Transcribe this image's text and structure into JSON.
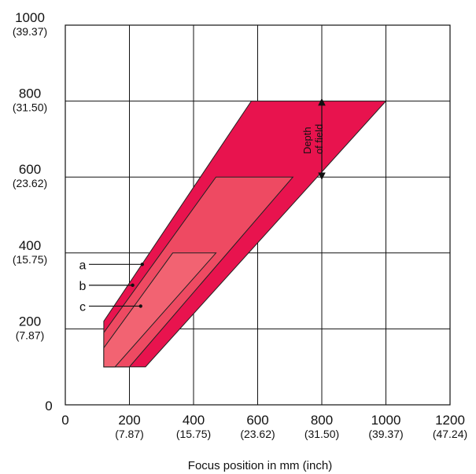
{
  "chart_data": {
    "type": "area",
    "xlabel": "Focus position in mm (inch)",
    "ylabel": "",
    "xlim": [
      0,
      1200
    ],
    "ylim": [
      0,
      1000
    ],
    "grid": true,
    "x_ticks": [
      {
        "value": 0,
        "label": "0",
        "sub": ""
      },
      {
        "value": 200,
        "label": "200",
        "sub": "(7.87)"
      },
      {
        "value": 400,
        "label": "400",
        "sub": "(15.75)"
      },
      {
        "value": 600,
        "label": "600",
        "sub": "(23.62)"
      },
      {
        "value": 800,
        "label": "800",
        "sub": "(31.50)"
      },
      {
        "value": 1000,
        "label": "1000",
        "sub": "(39.37)"
      },
      {
        "value": 1200,
        "label": "1200",
        "sub": "(47.24)"
      }
    ],
    "y_ticks": [
      {
        "value": 0,
        "label": "0",
        "sub": ""
      },
      {
        "value": 200,
        "label": "200",
        "sub": "(7.87)"
      },
      {
        "value": 400,
        "label": "400",
        "sub": "(15.75)"
      },
      {
        "value": 600,
        "label": "600",
        "sub": "(23.62)"
      },
      {
        "value": 800,
        "label": "800",
        "sub": "(31.50)"
      },
      {
        "value": 1000,
        "label": "1000",
        "sub": "(39.37)"
      }
    ],
    "series": [
      {
        "name": "a",
        "color": "#e8134e",
        "points": [
          [
            120,
            220
          ],
          [
            580,
            800
          ],
          [
            1000,
            800
          ],
          [
            250,
            100
          ],
          [
            120,
            100
          ]
        ]
      },
      {
        "name": "b",
        "color": "#ee4a62",
        "points": [
          [
            120,
            190
          ],
          [
            470,
            600
          ],
          [
            710,
            600
          ],
          [
            200,
            100
          ],
          [
            120,
            100
          ]
        ]
      },
      {
        "name": "c",
        "color": "#f26372",
        "points": [
          [
            120,
            150
          ],
          [
            335,
            400
          ],
          [
            470,
            400
          ],
          [
            155,
            100
          ],
          [
            120,
            100
          ]
        ]
      }
    ],
    "annotations": {
      "depth_of_field": [
        "Depth",
        "of field"
      ],
      "depth_arrow": {
        "x": 800,
        "y_from": 800,
        "y_to": 600
      },
      "pointers": [
        {
          "label": "a",
          "label_y": 370,
          "target": [
            240,
            370
          ]
        },
        {
          "label": "b",
          "label_y": 315,
          "target": [
            210,
            315
          ]
        },
        {
          "label": "c",
          "label_y": 260,
          "target": [
            235,
            260
          ]
        }
      ]
    }
  }
}
